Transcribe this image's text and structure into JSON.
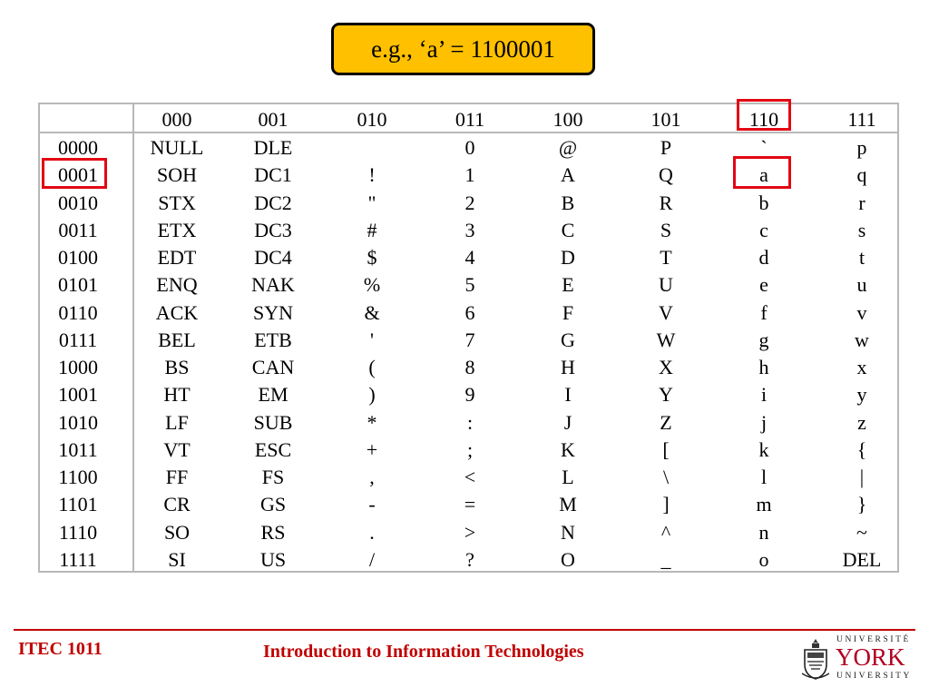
{
  "callout": {
    "text": "e.g., ‘a’ = 1100001",
    "color": "#ffc000"
  },
  "table": {
    "corner": "",
    "column_headers": [
      "000",
      "001",
      "010",
      "011",
      "100",
      "101",
      "110",
      "111"
    ],
    "rows": [
      {
        "label": "0000",
        "cells": [
          "NULL",
          "DLE",
          "",
          "0",
          "@",
          "P",
          "`",
          "p"
        ]
      },
      {
        "label": "0001",
        "cells": [
          "SOH",
          "DC1",
          "!",
          "1",
          "A",
          "Q",
          "a",
          "q"
        ]
      },
      {
        "label": "0010",
        "cells": [
          "STX",
          "DC2",
          "\"",
          "2",
          "B",
          "R",
          "b",
          "r"
        ]
      },
      {
        "label": "0011",
        "cells": [
          "ETX",
          "DC3",
          "#",
          "3",
          "C",
          "S",
          "c",
          "s"
        ]
      },
      {
        "label": "0100",
        "cells": [
          "EDT",
          "DC4",
          "$",
          "4",
          "D",
          "T",
          "d",
          "t"
        ]
      },
      {
        "label": "0101",
        "cells": [
          "ENQ",
          "NAK",
          "%",
          "5",
          "E",
          "U",
          "e",
          "u"
        ]
      },
      {
        "label": "0110",
        "cells": [
          "ACK",
          "SYN",
          "&",
          "6",
          "F",
          "V",
          "f",
          "v"
        ]
      },
      {
        "label": "0111",
        "cells": [
          "BEL",
          "ETB",
          "'",
          "7",
          "G",
          "W",
          "g",
          "w"
        ]
      },
      {
        "label": "1000",
        "cells": [
          "BS",
          "CAN",
          "(",
          "8",
          "H",
          "X",
          "h",
          "x"
        ]
      },
      {
        "label": "1001",
        "cells": [
          "HT",
          "EM",
          ")",
          "9",
          "I",
          "Y",
          "i",
          "y"
        ]
      },
      {
        "label": "1010",
        "cells": [
          "LF",
          "SUB",
          "*",
          ":",
          "J",
          "Z",
          "j",
          "z"
        ]
      },
      {
        "label": "1011",
        "cells": [
          "VT",
          "ESC",
          "+",
          ";",
          "K",
          "[",
          "k",
          "{"
        ]
      },
      {
        "label": "1100",
        "cells": [
          "FF",
          "FS",
          ",",
          "<",
          "L",
          "\\",
          "l",
          "|"
        ]
      },
      {
        "label": "1101",
        "cells": [
          "CR",
          "GS",
          "-",
          "=",
          "M",
          "]",
          "m",
          "}"
        ]
      },
      {
        "label": "1110",
        "cells": [
          "SO",
          "RS",
          ".",
          ">",
          "N",
          "^",
          "n",
          "~"
        ]
      },
      {
        "label": "1111",
        "cells": [
          "SI",
          "US",
          "/",
          "?",
          "O",
          "_",
          "o",
          "DEL"
        ]
      }
    ],
    "highlight_color": "#e30613"
  },
  "footer": {
    "course": "ITEC 1011",
    "title": "Introduction to Information Technologies",
    "color": "#c00000"
  },
  "logo": {
    "line1": "UNIVERSITÉ",
    "line2": "YORK",
    "line3": "UNIVERSITY"
  }
}
